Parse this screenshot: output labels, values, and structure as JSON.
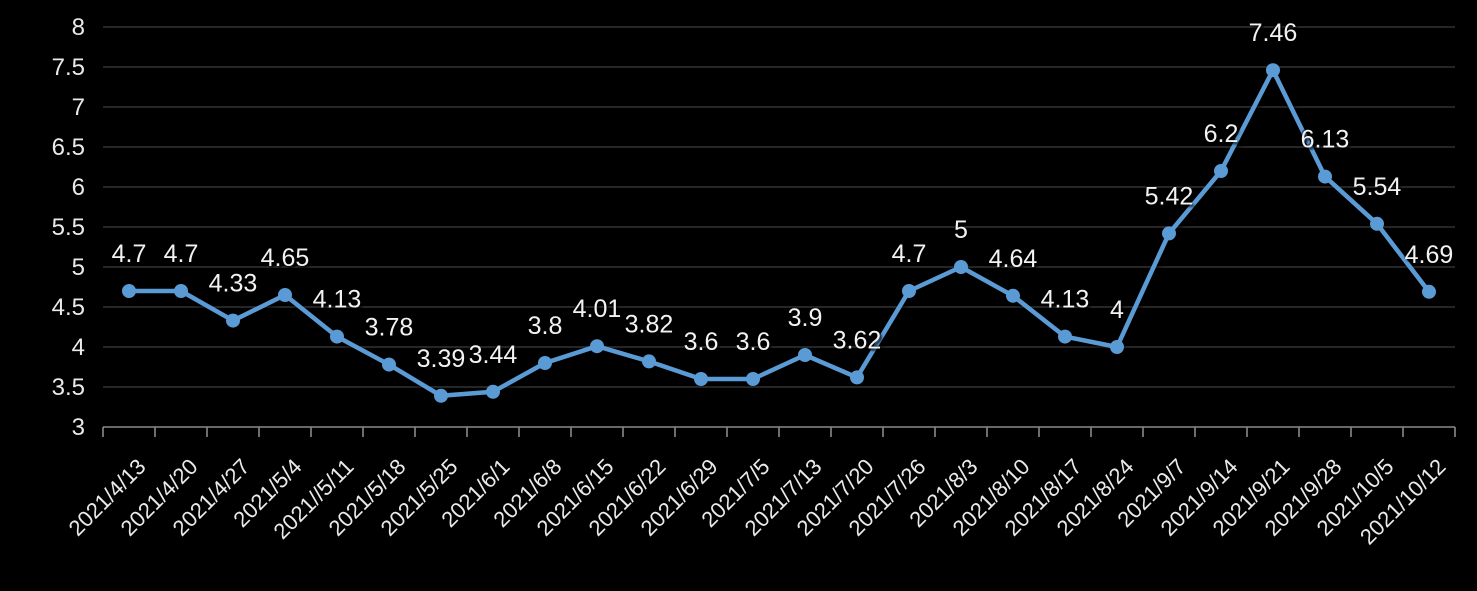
{
  "chart_data": {
    "type": "line",
    "title": "",
    "xlabel": "",
    "ylabel": "",
    "x": [
      "2021/4/13",
      "2021/4/20",
      "2021/4/27",
      "2021/5/4",
      "2021//5/11",
      "2021/5/18",
      "2021/5/25",
      "2021/6/1",
      "2021/6/8",
      "2021/6/15",
      "2021/6/22",
      "2021/6/29",
      "2021/7/5",
      "2021/7/13",
      "2021/7/20",
      "2021/7/26",
      "2021/8/3",
      "2021/8/10",
      "2021/8/17",
      "2021/8/24",
      "2021/9/7",
      "2021/9/14",
      "2021/9/21",
      "2021/9/28",
      "2021/10/5",
      "2021/10/12"
    ],
    "series": [
      {
        "name": "",
        "values": [
          4.7,
          4.7,
          4.33,
          4.65,
          4.13,
          3.78,
          3.39,
          3.44,
          3.8,
          4.01,
          3.82,
          3.6,
          3.6,
          3.9,
          3.62,
          4.7,
          5,
          4.64,
          4.13,
          4,
          5.42,
          6.2,
          7.46,
          6.13,
          5.54,
          4.69
        ]
      }
    ],
    "point_labels": [
      "4.7",
      "4.7",
      "4.33",
      "4.65",
      "4.13",
      "3.78",
      "3.39",
      "3.44",
      "3.8",
      "4.01",
      "3.82",
      "3.6",
      "3.6",
      "3.9",
      "3.62",
      "4.7",
      "5",
      "4.64",
      "4.13",
      "4",
      "5.42",
      "6.2",
      "7.46",
      "6.13",
      "5.54",
      "4.69"
    ],
    "ylim": [
      3,
      8
    ],
    "y_tick_values": [
      8,
      7.5,
      7,
      6.5,
      6,
      5.5,
      5,
      4.5,
      4,
      3.5,
      3
    ],
    "y_tick_labels": [
      "8",
      "7.5",
      "7",
      "6.5",
      "6",
      "5.5",
      "5",
      "4.5",
      "4",
      "3.5",
      "3"
    ],
    "grid": true,
    "legend_position": "none",
    "x_label_rotation_deg": 45,
    "colors": {
      "background": "#000000",
      "line": "#5b9bd5",
      "marker": "#5b9bd5",
      "gridline": "#333333",
      "axis": "#8a8a8a",
      "tick_label": "#eaeaea",
      "data_label": "#f2f2f2"
    }
  }
}
